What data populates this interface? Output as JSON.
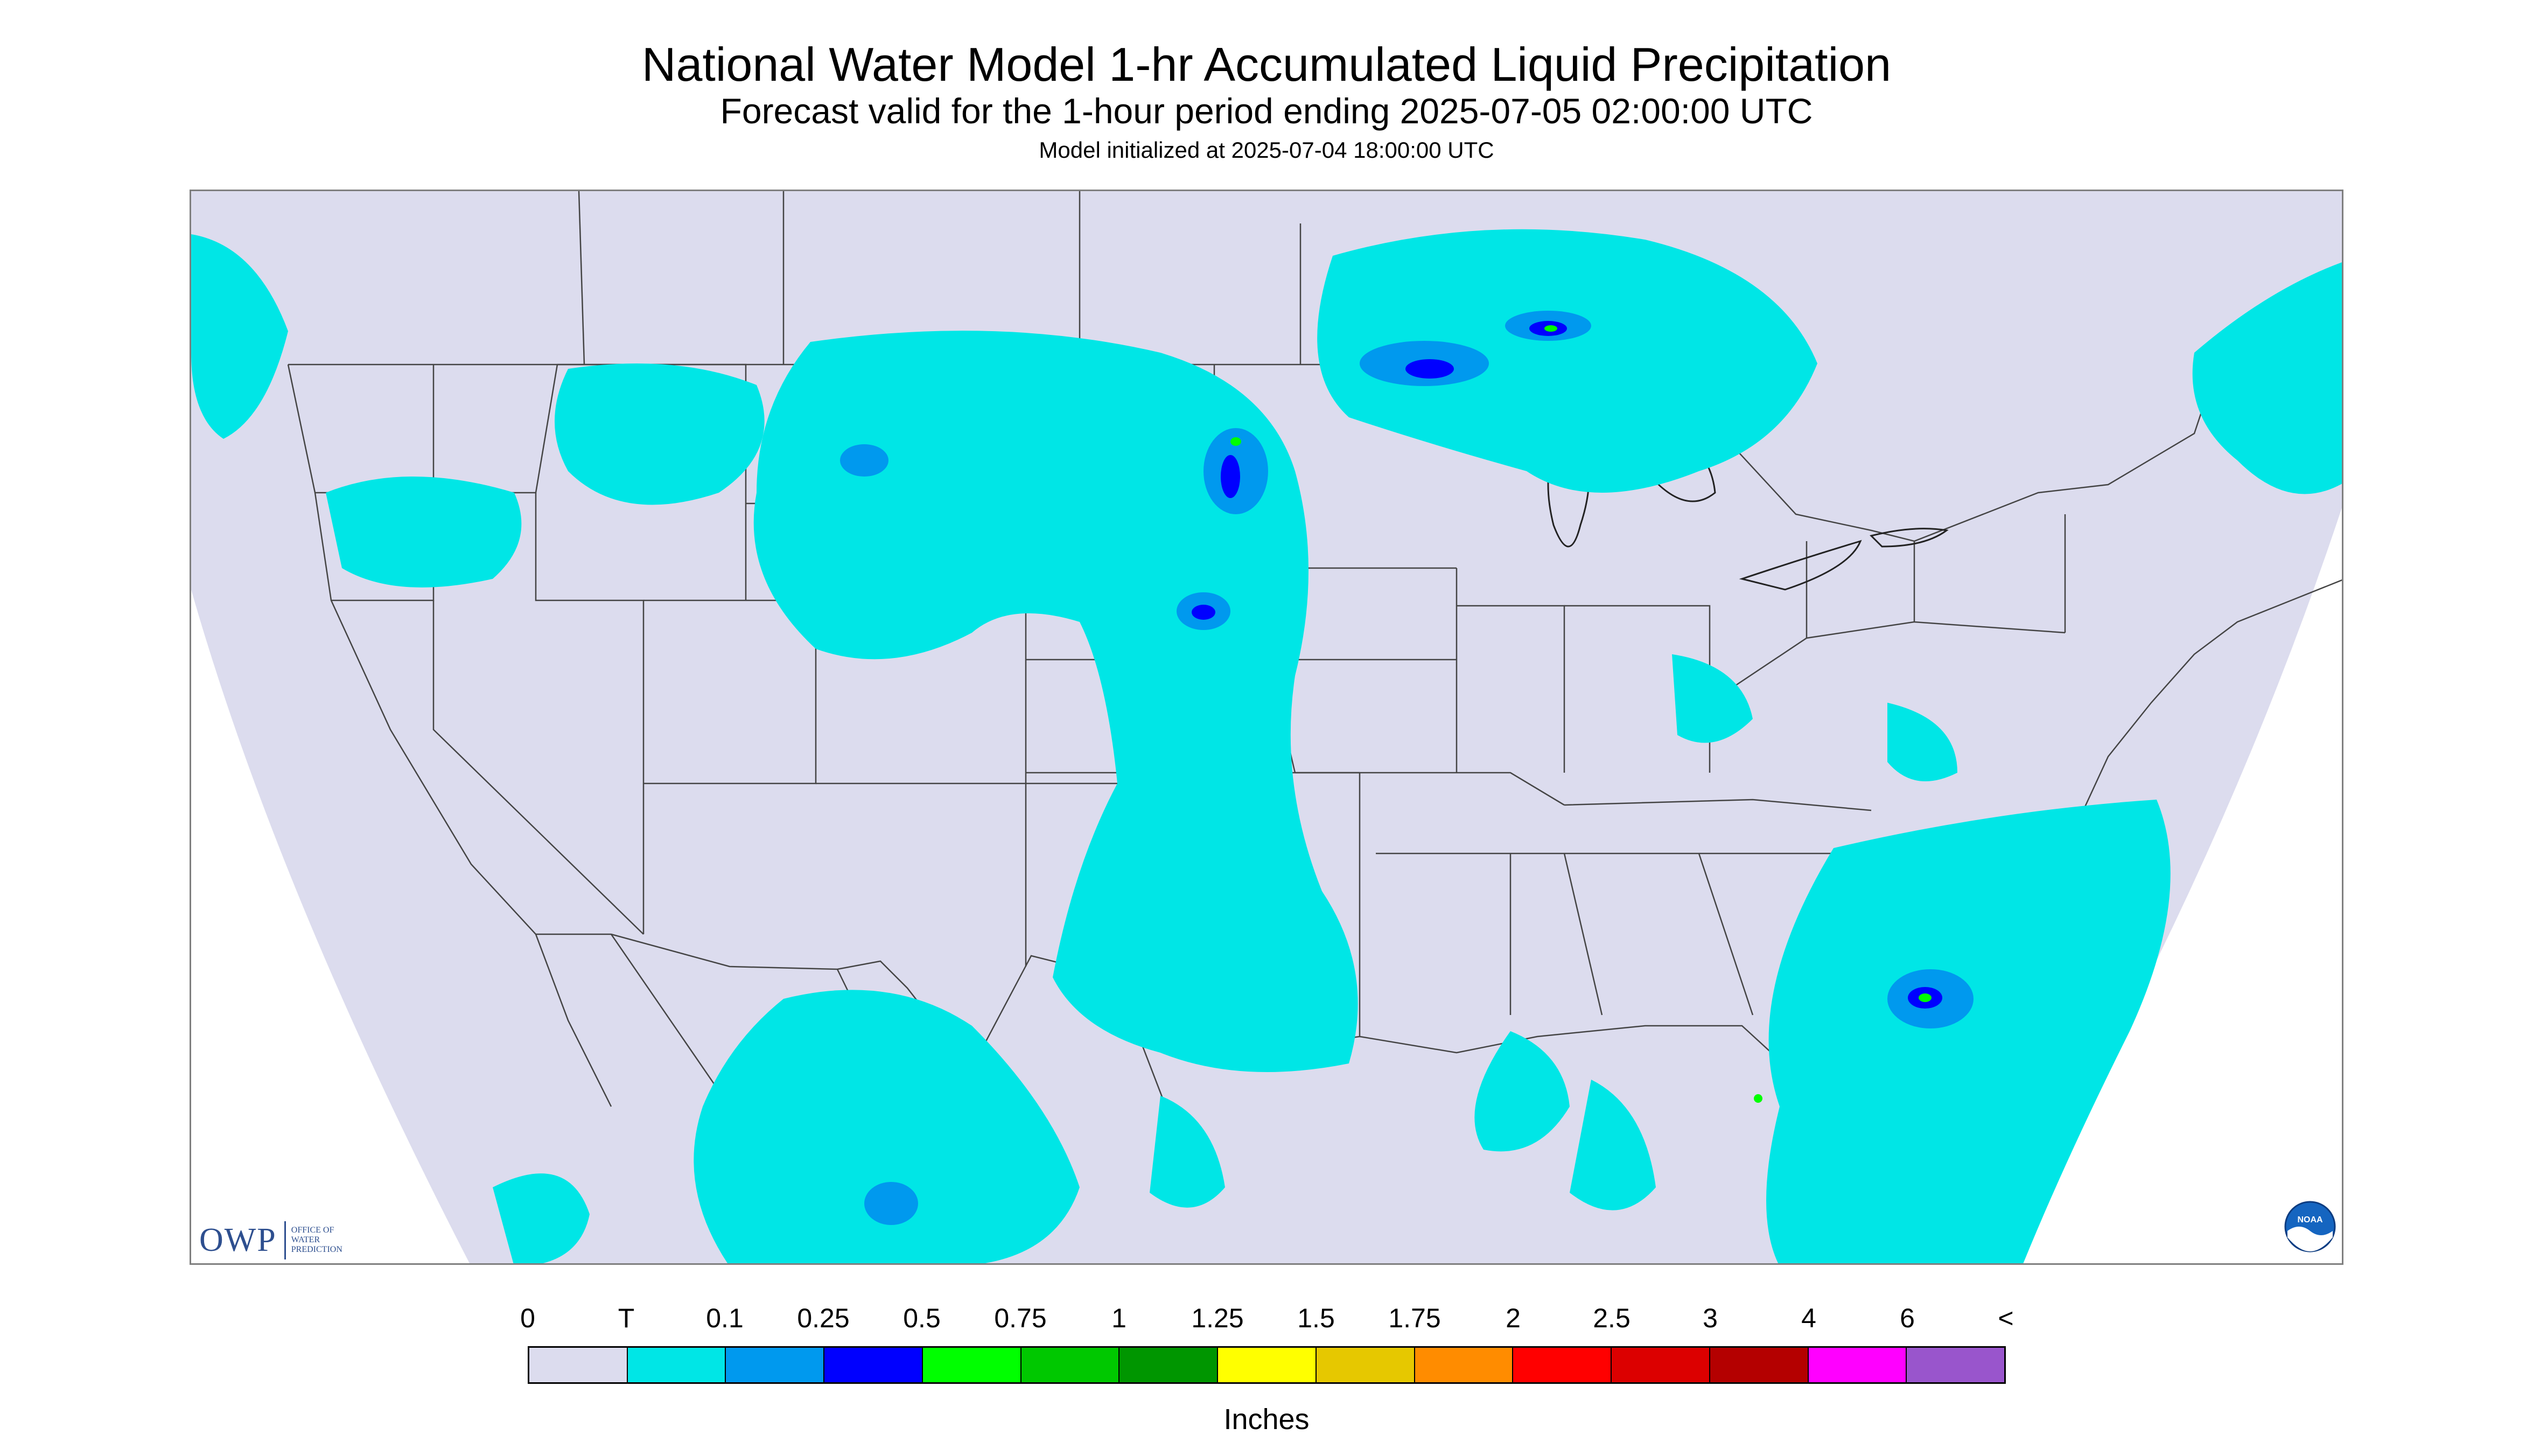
{
  "header": {
    "title": "National Water Model 1-hr Accumulated Liquid Precipitation",
    "subtitle": "Forecast valid for the 1-hour period ending 2025-07-05 02:00:00 UTC",
    "initialized": "Model initialized at 2025-07-04 18:00:00 UTC"
  },
  "map": {
    "background_color": "#dcdcee",
    "trace_color": "#00e6e6",
    "light_blue_color": "#0099ee",
    "blue_color": "#0000ff",
    "green_color": "#00ff00",
    "border_color": "#444444"
  },
  "logos": {
    "owp_text": "OWP",
    "owp_sub": [
      "Office of",
      "Water",
      "Prediction"
    ],
    "noaa_text": "NOAA"
  },
  "legend": {
    "labels": [
      "0",
      "T",
      "0.1",
      "0.25",
      "0.5",
      "0.75",
      "1",
      "1.25",
      "1.5",
      "1.75",
      "2",
      "2.5",
      "3",
      "4",
      "6",
      "<"
    ],
    "colors": [
      "#dcdcee",
      "#00e6e6",
      "#0099ee",
      "#0000ff",
      "#00ff00",
      "#00c800",
      "#009600",
      "#ffff00",
      "#e6c800",
      "#ff8c00",
      "#ff0000",
      "#dc0000",
      "#b40000",
      "#ff00ff",
      "#9955cc"
    ],
    "units": "Inches"
  }
}
